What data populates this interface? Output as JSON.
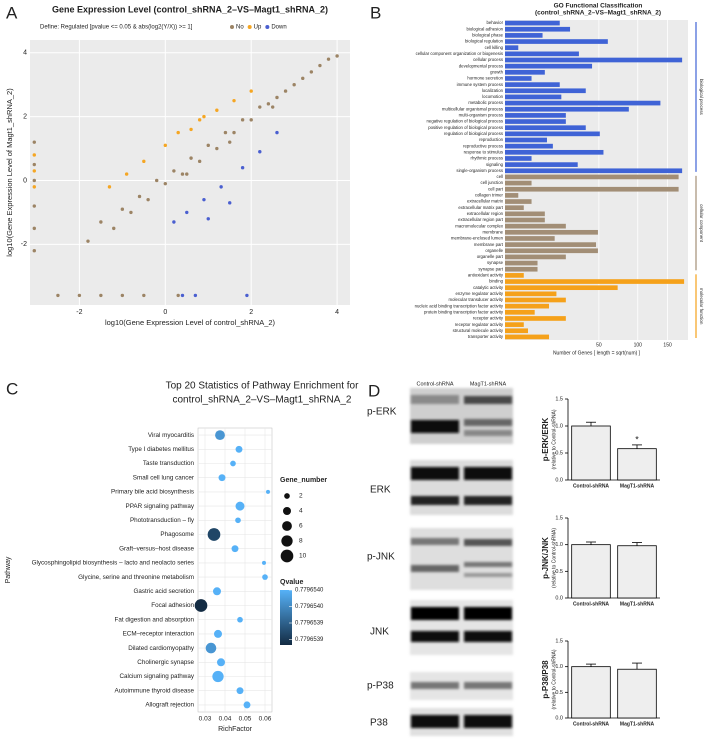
{
  "chart_data": [
    {
      "type": "scatter",
      "panel": "A",
      "title": "Gene Expression Level (control_shRNA_2–VS–Magt1_shRNA_2)",
      "subtitle": "Define: Regulated [pvalue <= 0.05 & abs(log2(Y/X)) >= 1]",
      "xlabel": "log10(Gene Expression Level of control_shRNA_2)",
      "ylabel": "log10(Gene Expression Level of Magt1_shRNA_2)",
      "xlim": [
        -3.15,
        4.3
      ],
      "ylim": [
        -3.9,
        4.4
      ],
      "xticks": [
        -2,
        0,
        2,
        4
      ],
      "yticks": [
        -2,
        0,
        2,
        4
      ],
      "grid": true,
      "series": [
        {
          "name": "No",
          "color": "#9c8465",
          "x": [
            -1.8,
            -1.5,
            -1.2,
            -1.0,
            -0.8,
            -0.6,
            -0.4,
            -0.2,
            0,
            0.2,
            0.4,
            0.6,
            0.8,
            1.0,
            1.2,
            1.4,
            1.6,
            1.8,
            2.0,
            2.2,
            2.4,
            2.6,
            2.8,
            3.0,
            3.2,
            3.4,
            3.6,
            3.8,
            4.0,
            0.5,
            1.5,
            2.5,
            -3.05,
            -3.05,
            -3.05,
            -3.05,
            -3.05,
            -3.05,
            -2.5,
            -2.0,
            -1.5,
            -1.0,
            -0.5,
            0.3
          ],
          "y": [
            -1.9,
            -1.3,
            -1.5,
            -0.9,
            -1.0,
            -0.5,
            -0.6,
            0.0,
            -0.1,
            0.3,
            0.2,
            0.7,
            0.6,
            1.1,
            1.0,
            1.5,
            1.5,
            1.9,
            1.9,
            2.3,
            2.4,
            2.6,
            2.8,
            3.0,
            3.2,
            3.4,
            3.6,
            3.8,
            3.9,
            0.2,
            1.2,
            2.3,
            -2.2,
            -1.5,
            -0.8,
            0,
            0.5,
            1.2,
            -3.6,
            -3.6,
            -3.6,
            -3.6,
            -3.6,
            -3.6
          ]
        },
        {
          "name": "Up",
          "color": "#f5a623",
          "x": [
            -1.3,
            -0.9,
            -0.5,
            0,
            0.3,
            0.6,
            0.9,
            1.2,
            1.6,
            2.0,
            -3.05,
            -3.05,
            -3.05,
            0.8
          ],
          "y": [
            -0.2,
            0.2,
            0.6,
            1.1,
            1.5,
            1.6,
            2.0,
            2.2,
            2.5,
            2.8,
            -0.2,
            0.3,
            0.8,
            1.9
          ]
        },
        {
          "name": "Down",
          "color": "#4a5fd0",
          "x": [
            0.2,
            0.5,
            0.9,
            1.3,
            1.8,
            2.2,
            2.6,
            1.0,
            1.5,
            0.4,
            0.7,
            1.9
          ],
          "y": [
            -1.3,
            -1.0,
            -0.6,
            -0.2,
            0.4,
            0.9,
            1.5,
            -1.2,
            -0.7,
            -3.6,
            -3.6,
            -3.6
          ]
        }
      ]
    },
    {
      "type": "barh",
      "panel": "B",
      "title": "GO Functional Classification",
      "subtitle": "(control_shRNA_2–VS–Magt1_shRNA_2)",
      "xlabel": "Number of Genes [ length = sqrt(num) ]",
      "xscale": "sqrt",
      "xlim": [
        0,
        190
      ],
      "xticks": [
        50,
        100,
        150
      ],
      "grid": true,
      "series": [
        {
          "name": "biological process",
          "color": "#3f63d6",
          "categories": [
            "behavior",
            "biological adhesion",
            "biological phase",
            "biological regulation",
            "cell killing",
            "cellular component organization or biogenesis",
            "cellular process",
            "developmental process",
            "growth",
            "hormone secretion",
            "immune system process",
            "localization",
            "locomotion",
            "metabolic process",
            "multicellular organismal process",
            "multi-organism process",
            "negative regulation of biological process",
            "positive regulation of biological process",
            "regulation of biological process",
            "reproduction",
            "reproductive process",
            "response to stimulus",
            "rhythmic process",
            "signaling",
            "single-organism process"
          ],
          "values": [
            17,
            24,
            8,
            60,
            1,
            31,
            178,
            43,
            9,
            4,
            17,
            37,
            18,
            137,
            87,
            21,
            21,
            37,
            51,
            10,
            13,
            55,
            4,
            30,
            178
          ]
        },
        {
          "name": "cellular component",
          "color": "#a28e76",
          "categories": [
            "cell",
            "cell junction",
            "cell part",
            "collagen trimer",
            "extracellular matrix",
            "extracellular matrix part",
            "extracellular region",
            "extracellular region part",
            "macromolecular complex",
            "membrane",
            "membrane-enclosed lumen",
            "membrane part",
            "organelle",
            "organelle part",
            "synapse",
            "synapse part"
          ],
          "values": [
            171,
            4,
            171,
            1,
            4,
            2,
            9,
            9,
            21,
            49,
            14,
            47,
            49,
            21,
            6,
            6
          ]
        },
        {
          "name": "molecular function",
          "color": "#f5a11a",
          "categories": [
            "antioxidant activity",
            "binding",
            "catalytic activity",
            "enzyme regulator activity",
            "molecular transducer activity",
            "nucleic acid binding transcription factor activity",
            "protein binding transcription factor activity",
            "receptor activity",
            "receptor regulator activity",
            "structural molecule activity",
            "transporter activity"
          ],
          "values": [
            2,
            182,
            72,
            15,
            21,
            11,
            5,
            21,
            2,
            3,
            11
          ]
        }
      ]
    },
    {
      "type": "bubble",
      "panel": "C",
      "title": "Top 20 Statistics of Pathway Enrichment for",
      "subtitle": "control_shRNA_2–VS–Magt1_shRNA_2",
      "xlabel": "RichFactor",
      "ylabel": "Pathway",
      "xlim": [
        0.0265,
        0.0635
      ],
      "xticks": [
        0.03,
        0.04,
        0.05,
        0.06
      ],
      "grid": true,
      "categories": [
        "Viral myocarditis",
        "Type I diabetes mellitus",
        "Taste transduction",
        "Small cell lung cancer",
        "Primary bile acid biosynthesis",
        "PPAR signaling pathway",
        "Phototransduction – fly",
        "Phagosome",
        "Graft–versus–host disease",
        "Glycosphingolipid biosynthesis – lacto and neolacto series",
        "Glycine, serine and threonine metabolism",
        "Gastric acid secretion",
        "Focal adhesion",
        "Fat digestion and absorption",
        "ECM–receptor interaction",
        "Dilated cardiomyopathy",
        "Cholinergic synapse",
        "Calcium signaling pathway",
        "Autoimmune thyroid disease",
        "Allograft rejection"
      ],
      "x": [
        0.0375,
        0.047,
        0.044,
        0.0385,
        0.0615,
        0.0475,
        0.0465,
        0.0345,
        0.045,
        0.0595,
        0.06,
        0.036,
        0.028,
        0.0475,
        0.0365,
        0.033,
        0.038,
        0.0365,
        0.0475,
        0.051
      ],
      "sizes": [
        6,
        3,
        2,
        3,
        1,
        5,
        2,
        10,
        3,
        1,
        2,
        4,
        10,
        2,
        4,
        7,
        4,
        8,
        3,
        3
      ],
      "qvalues": [
        0.77965398,
        0.779654,
        0.779654,
        0.779654,
        0.779654,
        0.779654,
        0.779654,
        0.77965392,
        0.779654,
        0.779654,
        0.779654,
        0.779654,
        0.7796539,
        0.779654,
        0.779654,
        0.77965398,
        0.779654,
        0.779654,
        0.779654,
        0.779654
      ],
      "size_title": "Gene_number",
      "size_ticks": [
        2,
        4,
        6,
        8,
        10
      ],
      "color_title": "Qvalue",
      "colormap": [
        "#132b43",
        "#56b1f7"
      ],
      "clim": [
        0.7796539,
        0.779654
      ],
      "color_ticks": [
        {
          "value": 0.779654,
          "label": "0.7796540"
        },
        {
          "value": 0.77965397,
          "label": "0.7796540"
        },
        {
          "value": 0.77965394,
          "label": "0.7796539"
        },
        {
          "value": 0.77965391,
          "label": "0.7796539"
        }
      ]
    },
    {
      "type": "bar",
      "ylabel": "p-ERK/ERK",
      "ylabel2": "(relative to Control-shRNA)",
      "color": "#eeeeee",
      "categories": [
        "Control-shRNA",
        "MagT1-shRNA"
      ],
      "values": [
        1.0,
        0.58
      ],
      "errors": [
        0.07,
        0.07
      ],
      "annotation": "*",
      "ylim": [
        0,
        1.5
      ],
      "yticks": [
        {
          "value": 0,
          "label": "0.0"
        },
        0.5,
        {
          "value": 1,
          "label": "1.0"
        },
        1.5
      ]
    },
    {
      "type": "bar",
      "ylabel": "p-JNK/JNK",
      "ylabel2": "(relative to Control-shRNA)",
      "color": "#eeeeee",
      "categories": [
        "Control-shRNA",
        "MagT1-shRNA"
      ],
      "values": [
        1.0,
        0.98
      ],
      "errors": [
        0.05,
        0.06
      ],
      "ylim": [
        0,
        1.5
      ],
      "yticks": [
        {
          "value": 0,
          "label": "0.0"
        },
        0.5,
        {
          "value": 1,
          "label": "1.0"
        },
        1.5
      ]
    },
    {
      "type": "bar",
      "ylabel": "p-P38/P38",
      "ylabel2": "(relative to Control-shRNA)",
      "color": "#eeeeee",
      "categories": [
        "Control-shRNA",
        "MagT1-shRNA"
      ],
      "values": [
        1.0,
        0.95
      ],
      "errors": [
        0.05,
        0.12
      ],
      "ylim": [
        0,
        1.5
      ],
      "yticks": [
        {
          "value": 0,
          "label": "0.0"
        },
        0.5,
        {
          "value": 1,
          "label": "1.0"
        },
        1.5
      ]
    }
  ],
  "blot": {
    "panel": "D",
    "columns": [
      "Control-shRNA",
      "MagT1-shRNA"
    ],
    "rows": [
      "p-ERK",
      "ERK",
      "p-JNK",
      "JNK",
      "p-P38",
      "P38"
    ]
  }
}
